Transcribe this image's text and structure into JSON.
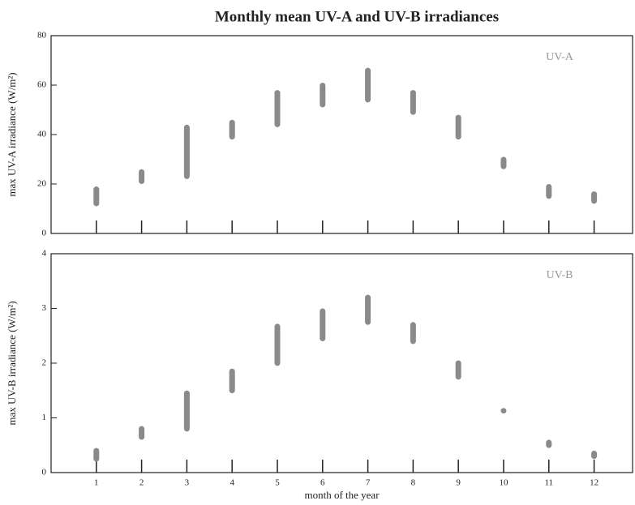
{
  "chart_data": [
    {
      "type": "range",
      "title": "Monthly mean UV-A and UV-B irradiances",
      "annotation": "UV-A",
      "ylabel": "max UV-A irradiance (W/m²)",
      "color": "#8a8a8a",
      "x": [
        1,
        2,
        3,
        4,
        5,
        6,
        7,
        8,
        9,
        10,
        11,
        12
      ],
      "low": [
        11,
        20,
        22,
        38,
        43,
        51,
        53,
        48,
        38,
        26,
        14,
        12
      ],
      "high": [
        19,
        26,
        44,
        46,
        58,
        61,
        67,
        58,
        48,
        31,
        20,
        17
      ],
      "xlim": [
        0,
        12.85
      ],
      "xticks": [
        1,
        2,
        3,
        4,
        5,
        6,
        7,
        8,
        9,
        10,
        11,
        12
      ],
      "ylim": [
        0,
        80
      ],
      "yticks": [
        0,
        20,
        40,
        60,
        80
      ]
    },
    {
      "type": "range",
      "annotation": "UV-B",
      "ylabel": "max UV-B irradiance (W/m²)",
      "xlabel": "month of the year",
      "color": "#8a8a8a",
      "x": [
        1,
        2,
        3,
        4,
        5,
        6,
        7,
        8,
        9,
        10,
        11,
        12
      ],
      "low": [
        0.2,
        0.6,
        0.75,
        1.45,
        1.95,
        2.4,
        2.7,
        2.35,
        1.7,
        1.08,
        0.45,
        0.25
      ],
      "high": [
        0.45,
        0.85,
        1.5,
        1.9,
        2.72,
        3.0,
        3.25,
        2.75,
        2.05,
        1.18,
        0.6,
        0.4
      ],
      "xlim": [
        0,
        12.85
      ],
      "xticks": [
        1,
        2,
        3,
        4,
        5,
        6,
        7,
        8,
        9,
        10,
        11,
        12
      ],
      "ylim": [
        0,
        4
      ],
      "yticks": [
        0,
        1,
        2,
        3,
        4
      ]
    }
  ]
}
